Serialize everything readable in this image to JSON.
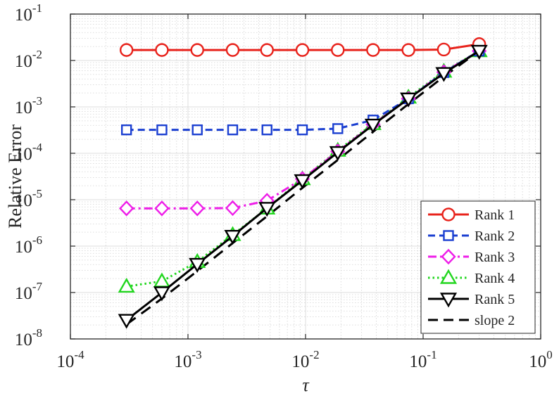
{
  "chart_data": {
    "type": "line",
    "xlabel": "τ",
    "ylabel": "Relative Error",
    "xscale": "log",
    "yscale": "log",
    "xlim": [
      0.0001,
      1
    ],
    "ylim": [
      1e-08,
      0.1
    ],
    "grid": "major and minor",
    "legend_position": "bottom-right",
    "x_ticks": [
      {
        "value": 0.0001,
        "base": "10",
        "exp": "-4"
      },
      {
        "value": 0.001,
        "base": "10",
        "exp": "-3"
      },
      {
        "value": 0.01,
        "base": "10",
        "exp": "-2"
      },
      {
        "value": 0.1,
        "base": "10",
        "exp": "-1"
      },
      {
        "value": 1,
        "base": "10",
        "exp": "0"
      }
    ],
    "y_ticks": [
      {
        "value": 1e-08,
        "base": "10",
        "exp": "-8"
      },
      {
        "value": 1e-07,
        "base": "10",
        "exp": "-7"
      },
      {
        "value": 1e-06,
        "base": "10",
        "exp": "-6"
      },
      {
        "value": 1e-05,
        "base": "10",
        "exp": "-5"
      },
      {
        "value": 0.0001,
        "base": "10",
        "exp": "-4"
      },
      {
        "value": 0.001,
        "base": "10",
        "exp": "-3"
      },
      {
        "value": 0.01,
        "base": "10",
        "exp": "-2"
      },
      {
        "value": 0.1,
        "base": "10",
        "exp": "-1"
      }
    ],
    "x": [
      0.0003,
      0.0006,
      0.0012,
      0.0024,
      0.0047,
      0.0094,
      0.0188,
      0.0375,
      0.075,
      0.15,
      0.3
    ],
    "series": [
      {
        "name": "Rank 1",
        "color": "#e8231c",
        "dash": "solid",
        "marker": "circle",
        "values": [
          0.0168,
          0.0168,
          0.0168,
          0.0168,
          0.0168,
          0.0168,
          0.0168,
          0.0168,
          0.0168,
          0.0172,
          0.0225
        ]
      },
      {
        "name": "Rank 2",
        "color": "#1b3fd1",
        "dash": "dashed",
        "marker": "square",
        "values": [
          0.00032,
          0.00032,
          0.00032,
          0.00032,
          0.00032,
          0.00032,
          0.00034,
          0.00052,
          0.0015,
          0.0055,
          0.016
        ]
      },
      {
        "name": "Rank 3",
        "color": "#ee1ee8",
        "dash": "dashdot",
        "marker": "diamond",
        "values": [
          6.5e-06,
          6.5e-06,
          6.5e-06,
          6.6e-06,
          9.5e-06,
          2.8e-05,
          0.00011,
          0.00042,
          0.0015,
          0.0056,
          0.016
        ]
      },
      {
        "name": "Rank 4",
        "color": "#22d61f",
        "dash": "dotted",
        "marker": "triangle-up",
        "values": [
          1.35e-07,
          1.75e-07,
          4.6e-07,
          1.75e-06,
          6.5e-06,
          2.8e-05,
          0.000115,
          0.00043,
          0.0016,
          0.0058,
          0.016
        ]
      },
      {
        "name": "Rank 5",
        "color": "#000000",
        "dash": "solid",
        "marker": "triangle-down",
        "values": [
          2.55e-08,
          1e-07,
          4.1e-07,
          1.65e-06,
          6.6e-06,
          2.6e-05,
          0.000105,
          0.00041,
          0.0015,
          0.0053,
          0.016
        ]
      },
      {
        "name": "slope 2",
        "color": "#000000",
        "dash": "longdash",
        "marker": "none",
        "values": [
          2.05e-08,
          7.4e-08,
          2.9e-07,
          1.16e-06,
          4.4e-06,
          1.8e-05,
          7.2e-05,
          0.00029,
          0.00115,
          0.0045,
          0.016
        ]
      }
    ]
  }
}
